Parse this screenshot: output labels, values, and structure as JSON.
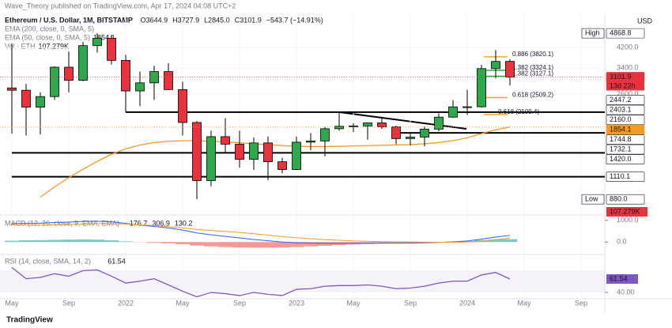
{
  "header": {
    "published": "Wave_Theory published on TradingView.com, Apr 17, 2024 04:08 UTC+2",
    "brand": "TradingView",
    "currency": "USD"
  },
  "chart_data": {
    "type": "candlestick",
    "title": "Ethereum / U.S. Dollar, 1M, BITSTAMP",
    "legend_values": [
      "O3644.9",
      "H3727.9",
      "L2845.0",
      "C3101.9",
      "−543.7 (−14.91%)"
    ],
    "indicator_labels": [
      {
        "name": "EMA (200, close, 0, SMA, 5)"
      },
      {
        "name": "EMA (50, close, 0, SMA, 5)",
        "value": "1854.1"
      },
      {
        "name": "Vol · ETH",
        "value": "107.279K"
      }
    ],
    "log_scale": true,
    "ylim": [
      761,
      5830
    ],
    "yticks": [
      {
        "value": 4200,
        "label": "4200.0"
      },
      {
        "value": 3400,
        "label": "3400.0"
      },
      {
        "value": 2600,
        "label": "2600.0"
      }
    ],
    "xticks": [
      {
        "value": 0,
        "label": "May"
      },
      {
        "value": 4,
        "label": "Sep"
      },
      {
        "value": 8,
        "label": "2022"
      },
      {
        "value": 12,
        "label": "May"
      },
      {
        "value": 16,
        "label": "Sep"
      },
      {
        "value": 20,
        "label": "2023"
      },
      {
        "value": 24,
        "label": "May"
      },
      {
        "value": 28,
        "label": "Sep"
      },
      {
        "value": 32,
        "label": "2024"
      },
      {
        "value": 36,
        "label": "May"
      },
      {
        "value": 40,
        "label": "Sep"
      }
    ],
    "up_color": "#2ea84a",
    "down_color": "#e8333f",
    "open": [
      2772,
      2707,
      2275,
      2536,
      3433,
      3001,
      4288,
      4630,
      3683,
      2688,
      2922,
      3282,
      2726,
      1942,
      1067,
      1678,
      1553,
      1328,
      1573,
      1296,
      1196,
      1585,
      1605,
      1821,
      1868,
      1874,
      1934,
      1857,
      1645,
      1671,
      1814,
      2052,
      2281,
      2283,
      3383,
      3644.9
    ],
    "high": [
      4380,
      2891,
      2645,
      3466,
      4028,
      4460,
      4868.8,
      4780,
      3900,
      3283,
      3482,
      3580,
      2955,
      1970,
      1785,
      2030,
      1785,
      1665,
      1680,
      1350,
      1680,
      1742,
      1857,
      2141,
      1928,
      1930,
      2029,
      1880,
      1750,
      1865,
      2130,
      2445,
      2717,
      3522,
      4093,
      3727.9
    ],
    "low": [
      1730,
      1700,
      1719,
      2451,
      2651,
      2971,
      3994,
      3524,
      2159,
      2300,
      2450,
      2711,
      1700,
      880,
      1006,
      1422,
      1220,
      1191,
      1073,
      1150,
      1190,
      1460,
      1370,
      1785,
      1760,
      1626,
      1820,
      1550,
      1531,
      1521,
      1775,
      2035,
      2100,
      2266,
      3057,
      2845.0
    ],
    "close": [
      2707,
      2275,
      2536,
      3433,
      3001,
      4288,
      4630,
      3683,
      2688,
      2922,
      3282,
      2726,
      1942,
      1067,
      1678,
      1553,
      1328,
      1573,
      1296,
      1196,
      1585,
      1605,
      1821,
      1868,
      1874,
      1934,
      1857,
      1645,
      1671,
      1814,
      2052,
      2281,
      2283,
      3383,
      3644,
      3101.9
    ],
    "ema": {
      "color": "#f59a23",
      "values": [
        null,
        null,
        900,
        1000,
        1100,
        1200,
        1300,
        1400,
        1480,
        1540,
        1580,
        1600,
        1610,
        1610,
        1600,
        1590,
        1575,
        1560,
        1545,
        1530,
        1520,
        1515,
        1515,
        1520,
        1525,
        1530,
        1535,
        1540,
        1545,
        1560,
        1580,
        1610,
        1660,
        1730,
        1800,
        1854.1
      ]
    },
    "hlines": [
      {
        "value": 2160,
        "from": 8
      },
      {
        "value": 1420,
        "from": 0
      },
      {
        "value": 1110.1,
        "from": 0
      },
      {
        "value": 1744.8,
        "from": 27
      }
    ],
    "fib_levels": [
      {
        "label": "0.886 (3820.1)",
        "value": 3820.1,
        "color": "#f5a623"
      },
      {
        "label": "1.382 (3324.1)",
        "value": 3324.1,
        "color": "#2ea84a"
      },
      {
        "label": "1.382 (3127.1)",
        "value": 3127.1,
        "color": "#2ea84a"
      },
      {
        "label": "0.618 (2509.2)",
        "value": 2509.2,
        "color": "#f5a623"
      },
      {
        "label": "0.618 (2109.4)",
        "value": 2109.4,
        "color": "#f5a623"
      }
    ],
    "price_labels": [
      {
        "value": 4868.8,
        "label": "4868.8",
        "tag": "High",
        "bg": "#ffffff",
        "fg": "#131722"
      },
      {
        "value": 3101.9,
        "label": "3101.9",
        "sub": "13d 22h",
        "bg": "#e8333f",
        "fg": "#ffffff"
      },
      {
        "value": 2447.2,
        "label": "2447.2",
        "bg": "#ffffff",
        "fg": "#131722"
      },
      {
        "value": 2403.1,
        "label": "2403.1",
        "bg": "#ffffff",
        "fg": "#131722"
      },
      {
        "value": 2160,
        "label": "2160.0",
        "bg": "#ffffff",
        "fg": "#131722"
      },
      {
        "value": 1854.1,
        "label": "1854.1",
        "bg": "#f59a23",
        "fg": "#ffffff"
      },
      {
        "value": 1744.8,
        "label": "1744.8",
        "bg": "#ffffff",
        "fg": "#131722"
      },
      {
        "value": 1732.1,
        "label": "1732.1",
        "bg": "#ffffff",
        "fg": "#131722"
      },
      {
        "value": 1420,
        "label": "1420.0",
        "bg": "#ffffff",
        "fg": "#131722"
      },
      {
        "value": 1110.1,
        "label": "1110.1",
        "bg": "#ffffff",
        "fg": "#131722"
      },
      {
        "value": 880,
        "label": "880.0",
        "tag": "Low",
        "bg": "#ffffff",
        "fg": "#131722"
      }
    ],
    "volume_label": {
      "label": "107.279K",
      "bg": "#e8333f"
    },
    "macd": {
      "title": "MACD (12, 26, close, 9, EMA, EMA)",
      "readings": [
        "176.7",
        "306.9",
        "130.2"
      ],
      "yticks": [
        {
          "value": 1000,
          "label": "1000.0"
        },
        {
          "value": 0,
          "label": "0.0"
        }
      ],
      "ylim": [
        -500,
        1100
      ],
      "line_color": "#2962ff",
      "signal_color": "#f59a23",
      "histogram": [
        60,
        80,
        90,
        100,
        110,
        120,
        110,
        80,
        30,
        -10,
        -40,
        -60,
        -100,
        -160,
        -200,
        -230,
        -250,
        -260,
        -260,
        -250,
        -230,
        -200,
        -170,
        -140,
        -110,
        -90,
        -70,
        -60,
        -50,
        -30,
        -10,
        20,
        50,
        90,
        120,
        130.2
      ],
      "line": [
        850,
        860,
        870,
        900,
        920,
        950,
        960,
        930,
        860,
        780,
        720,
        650,
        550,
        420,
        330,
        260,
        190,
        120,
        60,
        0,
        -30,
        -50,
        -60,
        -60,
        -60,
        -55,
        -50,
        -50,
        -45,
        -35,
        -20,
        10,
        50,
        130,
        230,
        306.9
      ],
      "signal": [
        790,
        780,
        780,
        800,
        810,
        830,
        850,
        850,
        830,
        790,
        760,
        710,
        650,
        580,
        530,
        490,
        440,
        380,
        320,
        250,
        200,
        150,
        110,
        80,
        50,
        35,
        20,
        10,
        5,
        -5,
        -10,
        -10,
        0,
        40,
        110,
        176.7
      ]
    },
    "rsi": {
      "title": "RSI (14, close, SMA, 14, 2)",
      "reading": "61.54",
      "color": "#7e57c2",
      "yticks": [
        {
          "value": 40,
          "label": "40.00"
        }
      ],
      "values": [
        80,
        62,
        64,
        70,
        66,
        75,
        76,
        66,
        55,
        58,
        62,
        52,
        42,
        33,
        40,
        38,
        35,
        40,
        37,
        35,
        45,
        46,
        50,
        51,
        51,
        52,
        50,
        46,
        47,
        50,
        55,
        58,
        58,
        68,
        72,
        61.54
      ]
    }
  }
}
